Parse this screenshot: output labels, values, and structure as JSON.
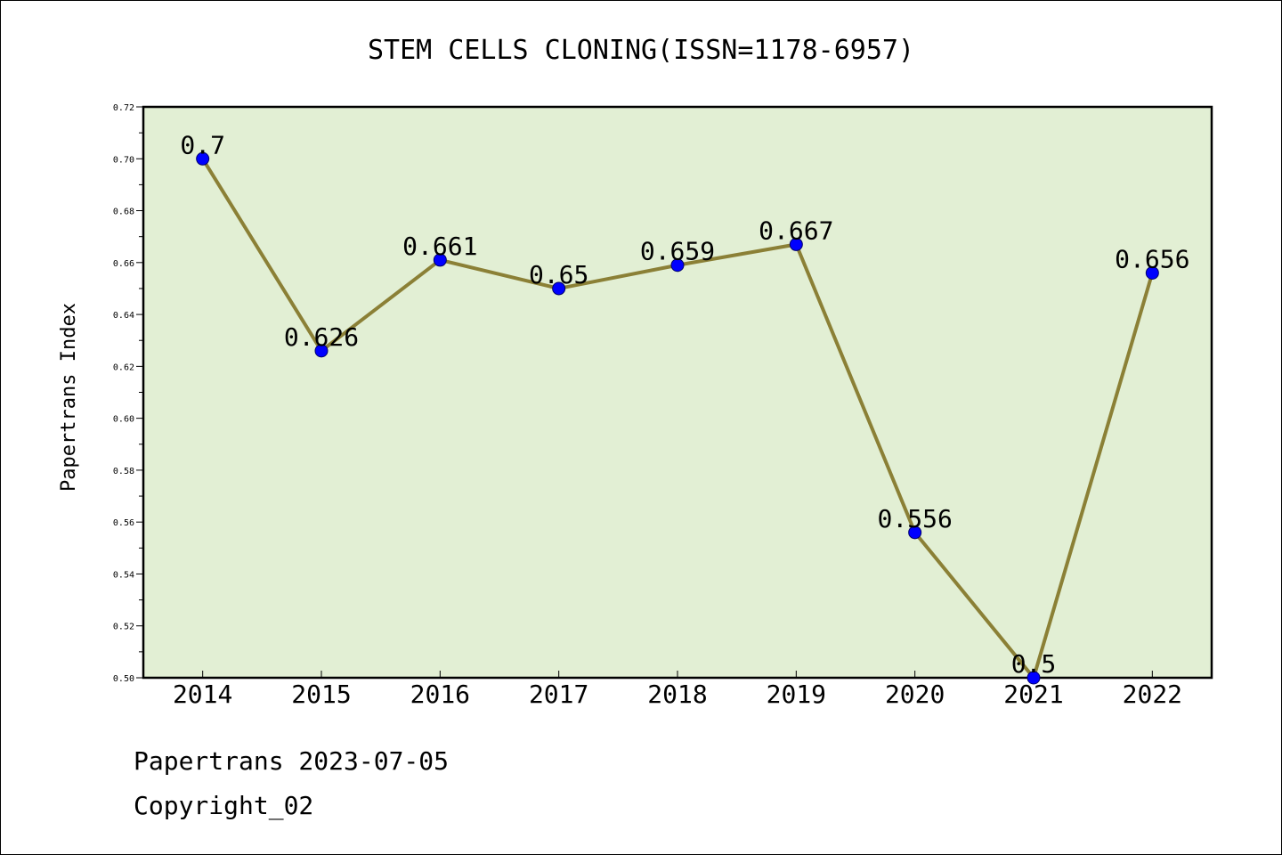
{
  "chart_data": {
    "type": "line",
    "title": "STEM CELLS CLONING(ISSN=1178-6957)",
    "xlabel": "",
    "ylabel": "Papertrans Index",
    "categories": [
      "2014",
      "2015",
      "2016",
      "2017",
      "2018",
      "2019",
      "2020",
      "2021",
      "2022"
    ],
    "series": [
      {
        "values": [
          0.7,
          0.626,
          0.661,
          0.65,
          0.659,
          0.667,
          0.556,
          0.5,
          0.656
        ],
        "labels": [
          "0.7",
          "0.626",
          "0.661",
          "0.65",
          "0.659",
          "0.667",
          "0.556",
          "0.5",
          "0.656"
        ]
      }
    ],
    "ylim": [
      0.5,
      0.72
    ],
    "yticks": [
      "0.50",
      "0.52",
      "0.54",
      "0.56",
      "0.58",
      "0.60",
      "0.62",
      "0.64",
      "0.66",
      "0.68",
      "0.70",
      "0.72"
    ],
    "grid": false,
    "colors": {
      "plot_background": "#e2efd4",
      "line": "#8b8036",
      "marker": "#0000ff"
    }
  },
  "footer": {
    "line1": "Papertrans 2023-07-05",
    "line2": "Copyright_02"
  }
}
